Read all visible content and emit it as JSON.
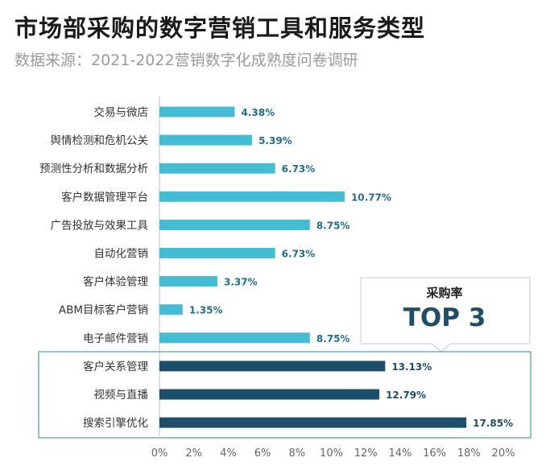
{
  "header": {
    "title": "市场部采购的数字营销工具和服务类型",
    "subtitle": "数据来源：2021-2022营销数字化成熟度问卷调研"
  },
  "callout": {
    "title": "采购率",
    "highlight": "TOP 3"
  },
  "colors": {
    "normal_bar": "#45bcd6",
    "highlight_bar": "#1d4f6a",
    "normal_label": "#1f6f8a",
    "highlight_label": "#1d4f6a",
    "frame": "#4a9bb0"
  },
  "chart_data": {
    "type": "bar",
    "orientation": "horizontal",
    "title": "市场部采购的数字营销工具和服务类型",
    "categories": [
      "交易与微店",
      "舆情检测和危机公关",
      "预测性分析和数据分析",
      "客户数据管理平台",
      "广告投放与效果工具",
      "自动化营销",
      "客户体验管理",
      "ABM目标客户营销",
      "电子邮件营销",
      "客户关系管理",
      "视频与直播",
      "搜索引擎优化"
    ],
    "values": [
      4.38,
      5.39,
      6.73,
      10.77,
      8.75,
      6.73,
      3.37,
      1.35,
      8.75,
      13.13,
      12.79,
      17.85
    ],
    "value_labels": [
      "4.38%",
      "5.39%",
      "6.73%",
      "10.77%",
      "8.75%",
      "6.73%",
      "3.37%",
      "1.35%",
      "8.75%",
      "13.13%",
      "12.79%",
      "17.85%"
    ],
    "highlighted": [
      "客户关系管理",
      "视频与直播",
      "搜索引擎优化"
    ],
    "xlim": [
      0,
      20
    ],
    "xticks": [
      "0%",
      "2%",
      "4%",
      "6%",
      "8%",
      "10%",
      "12%",
      "14%",
      "16%",
      "18%",
      "20%"
    ],
    "xlabel": "",
    "ylabel": ""
  }
}
